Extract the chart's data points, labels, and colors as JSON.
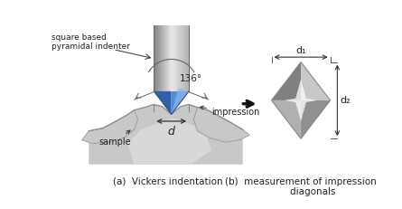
{
  "fig_width": 4.45,
  "fig_height": 2.31,
  "dpi": 100,
  "bg_color": "#ffffff",
  "title_a": "(a)  Vickers indentation",
  "title_b": "(b)  measurement of impression\n        diagonals",
  "label_square": "square based\npyramidal indenter",
  "label_136": "136°",
  "label_d": "d",
  "label_impression": "impression",
  "label_sample": "sample",
  "label_d1": "d₁",
  "label_d2": "d₂",
  "text_color": "#222222",
  "shaft_colors": [
    "#909090",
    "#e8e8e8",
    "#c0c0c0"
  ],
  "blue_dark": "#1a4fa0",
  "blue_mid": "#3878d0",
  "blue_light": "#8ab8f0",
  "sample_light": "#e0e0e0",
  "sample_mid": "#c8c8c8",
  "sample_dark": "#b0b0b0",
  "arrow_color": "#333333",
  "arc_color": "#666666"
}
